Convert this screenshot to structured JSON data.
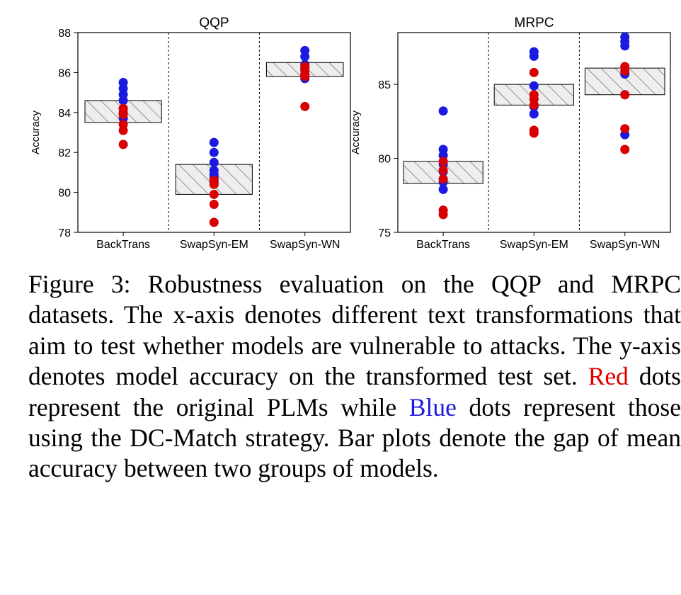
{
  "chart_data": [
    {
      "type": "scatter",
      "title": "QQP",
      "ylabel": "Accuracy",
      "xlabel": "",
      "ylim": [
        78,
        88
      ],
      "yticks": [
        78,
        80,
        82,
        84,
        86,
        88
      ],
      "categories": [
        "BackTrans",
        "SwapSyn-EM",
        "SwapSyn-WN"
      ],
      "series": [
        {
          "name": "Blue",
          "color": "#1a1ae0",
          "values": [
            [
              85.5,
              85.2,
              84.9,
              84.6,
              84.2,
              83.9,
              83.7
            ],
            [
              82.5,
              82.0,
              81.5,
              81.1,
              80.9,
              80.7,
              80.5
            ],
            [
              87.1,
              86.8,
              86.4,
              86.2,
              85.9,
              85.7
            ]
          ]
        },
        {
          "name": "Red",
          "color": "#d80000",
          "values": [
            [
              84.2,
              84.0,
              83.9,
              83.4,
              83.1,
              82.4
            ],
            [
              80.6,
              80.4,
              79.9,
              79.4,
              78.5
            ],
            [
              86.3,
              86.1,
              85.9,
              85.8,
              84.3
            ]
          ]
        }
      ],
      "gap_bars": [
        [
          83.5,
          84.6
        ],
        [
          79.9,
          81.4
        ],
        [
          85.8,
          86.5
        ]
      ]
    },
    {
      "type": "scatter",
      "title": "MRPC",
      "ylabel": "Accuracy",
      "xlabel": "",
      "ylim": [
        75,
        88.5
      ],
      "yticks": [
        75,
        80,
        85
      ],
      "categories": [
        "BackTrans",
        "SwapSyn-EM",
        "SwapSyn-WN"
      ],
      "series": [
        {
          "name": "Blue",
          "color": "#1a1ae0",
          "values": [
            [
              83.2,
              80.6,
              80.2,
              79.6,
              79.1,
              78.4,
              77.9
            ],
            [
              87.2,
              86.9,
              84.9,
              84.0,
              83.5,
              83.0
            ],
            [
              88.2,
              87.9,
              87.6,
              85.7,
              84.3,
              81.6
            ]
          ]
        },
        {
          "name": "Red",
          "color": "#d80000",
          "values": [
            [
              79.8,
              79.2,
              78.6,
              76.5,
              76.2
            ],
            [
              85.8,
              84.3,
              84.0,
              83.6,
              81.9,
              81.7
            ],
            [
              86.2,
              85.9,
              84.3,
              82.0,
              80.6
            ]
          ]
        }
      ],
      "gap_bars": [
        [
          78.3,
          79.8
        ],
        [
          83.6,
          85.0
        ],
        [
          84.3,
          86.1
        ]
      ]
    }
  ],
  "caption": {
    "before_red": "Figure 3:  Robustness evaluation on the QQP and MRPC datasets. The x-axis denotes different text transformations that aim to test whether models are vulnerable to attacks. The y-axis denotes model accuracy on the transformed test set.  ",
    "red_word": "Red",
    "between": " dots represent the original PLMs while ",
    "blue_word": "Blue",
    "after_blue": " dots represent those using the DC-Match strategy.  Bar plots denote the gap of mean accuracy between two groups of models."
  }
}
